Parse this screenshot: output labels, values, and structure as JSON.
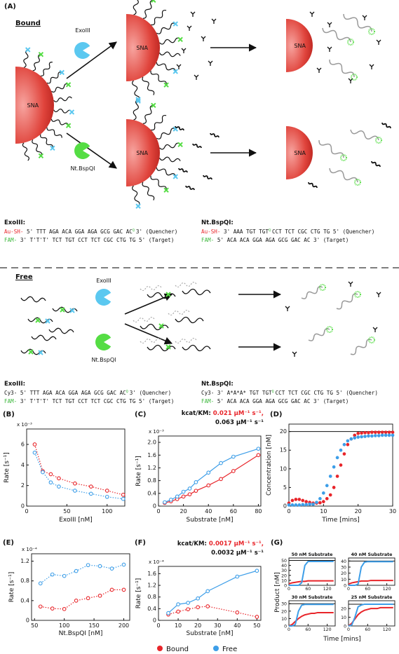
{
  "diagram": {
    "panel_label": "(A)",
    "sna": "SNA",
    "bound": {
      "title": "Bound",
      "enzymes": [
        "ExoIII",
        "Nt.BspQI"
      ]
    },
    "free": {
      "title": "Free",
      "enzymes": [
        "ExoIII",
        "Nt.BspQI"
      ]
    },
    "sequences": {
      "bound": [
        {
          "enzyme": "ExoIII:",
          "lines": [
            {
              "prefix": "Au-SH-",
              "seq": " 5' TTT AGA ACA GGA AGA GCG GAC AC",
              "mark": "Q",
              "tail": "3' (Quencher)"
            },
            {
              "prefix": "FAM-",
              "seq": " 3' T'T'T' TCT TGT CCT TCT CGC CTG TG 5' (Target)"
            }
          ]
        },
        {
          "enzyme": "Nt.BspQI:",
          "lines": [
            {
              "prefix": "Au-SH-",
              "seq": " 3' AAA TGT TGT",
              "mark": "Q",
              "tail": "CCT TCT CGC CTG TG 5' (Quencher)"
            },
            {
              "prefix": "FAM-",
              "seq": " 5' ACA ACA GGA AGA GCG GAC AC 3' (Target)"
            }
          ]
        }
      ],
      "free": [
        {
          "enzyme": "ExoIII:",
          "lines": [
            {
              "prefix": "Cy3-",
              "seq": " 5' TTT AGA ACA GGA AGA GCG GAC AC",
              "mark": "Q",
              "tail": "3' (Quencher)"
            },
            {
              "prefix": "FAM-",
              "seq": " 3' T'T'T' TCT TGT CCT TCT CGC CTG TG 5' (Target)"
            }
          ]
        },
        {
          "enzyme": "Nt.BspQI:",
          "lines": [
            {
              "prefix": "Cy3-",
              "seq": " 3' A*A*A* TGT TGT",
              "mark": "Q",
              "tail": "CCT TCT CGC CTG TG 5' (Quencher)"
            },
            {
              "prefix": "FAM-",
              "seq": " 5' ACA ACA GGA AGA GCG GAC AC 3' (Target)"
            }
          ]
        }
      ]
    }
  },
  "chart_data": [
    {
      "type": "scatter",
      "panel_label": "(B)",
      "xlabel": "ExoIII [nM]",
      "ylabel": "Rate [s⁻¹]",
      "y_multiplier": "x 10⁻³",
      "xlim": [
        0,
        122
      ],
      "xticks": [
        0,
        50,
        100
      ],
      "ylim": [
        0,
        7.5
      ],
      "yticks": [
        0,
        2,
        4,
        6
      ],
      "series": [
        {
          "name": "Bound",
          "color": "#e8252a",
          "line": "dotted",
          "x": [
            10,
            20,
            30,
            40,
            60,
            80,
            100,
            120
          ],
          "values": [
            6.0,
            3.4,
            3.1,
            2.7,
            2.2,
            1.9,
            1.5,
            1.1
          ]
        },
        {
          "name": "Free",
          "color": "#3d9ee8",
          "line": "dotted",
          "x": [
            10,
            20,
            30,
            40,
            60,
            80,
            100,
            120
          ],
          "values": [
            5.2,
            3.3,
            2.3,
            1.9,
            1.5,
            1.2,
            0.9,
            0.7
          ]
        }
      ]
    },
    {
      "type": "scatter",
      "panel_label": "(C)",
      "xlabel": "Substrate [nM]",
      "ylabel": "Rate [s⁻¹]",
      "y_multiplier": "x 10⁻³",
      "annotation": {
        "label": "kcat/KM:",
        "values": [
          "0.021 µM⁻¹ s⁻¹,",
          "0.063 µM⁻¹ s⁻¹"
        ]
      },
      "xlim": [
        0,
        82
      ],
      "xticks": [
        0,
        20,
        40,
        60,
        80
      ],
      "ylim": [
        0,
        2.2
      ],
      "yticks": [
        0,
        0.4,
        0.8,
        1.2,
        1.6,
        {
          "value": 2,
          "label": "2.0"
        }
      ],
      "series": [
        {
          "name": "Bound",
          "color": "#e8252a",
          "line": "solid",
          "x": [
            5,
            10,
            15,
            20,
            25,
            30,
            40,
            50,
            60,
            80
          ],
          "values": [
            0.1,
            0.15,
            0.22,
            0.3,
            0.37,
            0.48,
            0.65,
            0.85,
            1.1,
            1.6
          ]
        },
        {
          "name": "Free",
          "color": "#3d9ee8",
          "line": "solid",
          "x": [
            5,
            10,
            15,
            20,
            25,
            30,
            40,
            50,
            60,
            80
          ],
          "values": [
            0.12,
            0.2,
            0.3,
            0.45,
            0.55,
            0.75,
            1.05,
            1.35,
            1.55,
            1.8
          ]
        }
      ]
    },
    {
      "type": "line",
      "panel_label": "(D)",
      "xlabel": "Time [mins]",
      "ylabel": "Concentration [nM]",
      "reference_line": 20,
      "xlim": [
        0,
        30
      ],
      "xticks": [
        0,
        10,
        20,
        30
      ],
      "ylim": [
        0,
        22
      ],
      "yticks": [
        0,
        5,
        10,
        15,
        20
      ],
      "series": [
        {
          "name": "Bound",
          "color": "#e8252a",
          "line": "none",
          "marker": "filled",
          "x": [
            0,
            1,
            2,
            3,
            4,
            5,
            6,
            7,
            8,
            9,
            10,
            11,
            12,
            13,
            14,
            15,
            16,
            17,
            18,
            19,
            20,
            21,
            22,
            23,
            24,
            25,
            26,
            27,
            28,
            29,
            30
          ],
          "values": [
            0.8,
            1.5,
            1.8,
            1.8,
            1.5,
            1.2,
            1.0,
            0.8,
            0.8,
            0.9,
            1.2,
            2,
            3,
            5,
            8,
            11,
            14,
            16.5,
            18,
            19,
            19.5,
            19.6,
            19.7,
            19.7,
            19.8,
            19.8,
            19.8,
            19.8,
            19.8,
            19.8,
            19.8
          ]
        },
        {
          "name": "Free",
          "color": "#3d9ee8",
          "line": "none",
          "marker": "filled",
          "x": [
            0,
            1,
            2,
            3,
            4,
            5,
            6,
            7,
            8,
            9,
            10,
            11,
            12,
            13,
            14,
            15,
            16,
            17,
            18,
            19,
            20,
            21,
            22,
            23,
            24,
            25,
            26,
            27,
            28,
            29,
            30
          ],
          "values": [
            0.3,
            0.3,
            0.3,
            0.3,
            0.4,
            0.4,
            0.5,
            0.5,
            1,
            2,
            3.5,
            5.5,
            8,
            10.5,
            13,
            15,
            16.5,
            17.5,
            18,
            18.3,
            18.5,
            18.6,
            18.7,
            18.8,
            18.8,
            18.9,
            18.9,
            19,
            19,
            19,
            19
          ]
        }
      ]
    },
    {
      "type": "scatter",
      "panel_label": "(E)",
      "xlabel": "Nt.BspQI [nM]",
      "ylabel": "Rate [s⁻¹]",
      "y_multiplier": "x 10⁻⁴",
      "xlim": [
        45,
        210
      ],
      "xticks": [
        50,
        100,
        150,
        200
      ],
      "ylim": [
        0,
        1.35
      ],
      "yticks": [
        0,
        0.4,
        0.8,
        1.2
      ],
      "series": [
        {
          "name": "Bound",
          "color": "#e8252a",
          "line": "dotted",
          "x": [
            60,
            80,
            100,
            120,
            140,
            160,
            180,
            200
          ],
          "values": [
            0.28,
            0.24,
            0.23,
            0.4,
            0.45,
            0.5,
            0.62,
            0.62
          ]
        },
        {
          "name": "Free",
          "color": "#3d9ee8",
          "line": "dotted",
          "x": [
            60,
            80,
            100,
            120,
            140,
            160,
            180,
            200
          ],
          "values": [
            0.75,
            0.93,
            0.9,
            1.0,
            1.12,
            1.1,
            1.05,
            1.13
          ]
        }
      ]
    },
    {
      "type": "scatter",
      "panel_label": "(F)",
      "xlabel": "Substrate [nM]",
      "ylabel": "Rate [s⁻¹]",
      "y_multiplier": "x 10⁻⁴",
      "annotation": {
        "label": "kcat/KM:",
        "values": [
          "0.0017 µM⁻¹ s⁻¹,",
          "0.0032 µM⁻¹ s⁻¹"
        ]
      },
      "xlim": [
        0,
        52
      ],
      "xticks": [
        0,
        10,
        20,
        30,
        40,
        50
      ],
      "ylim": [
        0,
        1.85
      ],
      "yticks": [
        0,
        0.4,
        0.8,
        1.2,
        1.6
      ],
      "series": [
        {
          "name": "Bound",
          "color": "#e8252a",
          "line": "dotted",
          "x": [
            5,
            10,
            15,
            20,
            25,
            40,
            50
          ],
          "values": [
            0.2,
            0.3,
            0.38,
            0.45,
            0.48,
            0.27,
            0.12
          ]
        },
        {
          "name": "Free",
          "color": "#3d9ee8",
          "line": "solid",
          "x": [
            5,
            10,
            15,
            20,
            25,
            40,
            50
          ],
          "values": [
            0.25,
            0.55,
            0.6,
            0.75,
            1.0,
            1.5,
            1.7
          ]
        }
      ]
    },
    {
      "type": "small-multiples",
      "panel_label": "(G)",
      "xlabel": "Time [mins]",
      "ylabel": "Product [nM]",
      "xlim": [
        0,
        145
      ],
      "xticks": [
        0,
        60,
        120
      ],
      "x": [
        0,
        10,
        20,
        30,
        40,
        50,
        60,
        70,
        80,
        90,
        100,
        110,
        120,
        130,
        140
      ],
      "panels": [
        {
          "title": "50 nM Substrate",
          "reference_line": 50,
          "ylim": [
            0,
            55
          ],
          "yticks": [
            0,
            10,
            20,
            30,
            40,
            50
          ],
          "series": [
            {
              "name": "Bound",
              "color": "#e8252a",
              "values": [
                3,
                5,
                6,
                7,
                8,
                8,
                9,
                9,
                9,
                9,
                9,
                9,
                9,
                9,
                9
              ]
            },
            {
              "name": "Free",
              "color": "#3d9ee8",
              "values": [
                0,
                0,
                0,
                0,
                5,
                40,
                48,
                48,
                48,
                48,
                48,
                48,
                48,
                48,
                48
              ]
            }
          ]
        },
        {
          "title": "40 nM Substrate",
          "reference_line": 40,
          "ylim": [
            0,
            45
          ],
          "yticks": [
            0,
            10,
            20,
            30,
            40
          ],
          "series": [
            {
              "name": "Bound",
              "color": "#e8252a",
              "values": [
                2,
                4,
                5,
                6,
                7,
                7,
                7,
                8,
                8,
                8,
                8,
                8,
                8,
                8,
                8
              ]
            },
            {
              "name": "Free",
              "color": "#3d9ee8",
              "values": [
                0,
                0,
                0,
                2,
                30,
                38,
                39,
                39,
                39,
                39,
                39,
                39,
                39,
                39,
                39
              ]
            }
          ]
        },
        {
          "title": "30 nM Substrate",
          "reference_line": 30,
          "ylim": [
            0,
            34
          ],
          "yticks": [
            0,
            10,
            20,
            30
          ],
          "series": [
            {
              "name": "Bound",
              "color": "#e8252a",
              "values": [
                0,
                2,
                6,
                10,
                13,
                15,
                16,
                17,
                17,
                18,
                18,
                18,
                18,
                18,
                18
              ]
            },
            {
              "name": "Free",
              "color": "#3d9ee8",
              "values": [
                0,
                0,
                2,
                20,
                28,
                29,
                29,
                29,
                29,
                29,
                29,
                29,
                29,
                29,
                29
              ]
            }
          ]
        },
        {
          "title": "25 nM Substrate",
          "reference_line": 25,
          "ylim": [
            0,
            29
          ],
          "yticks": [
            0,
            10,
            20
          ],
          "series": [
            {
              "name": "Bound",
              "color": "#e8252a",
              "values": [
                0,
                3,
                8,
                13,
                16,
                18,
                19,
                20,
                20,
                20,
                21,
                21,
                21,
                21,
                21
              ]
            },
            {
              "name": "Free",
              "color": "#3d9ee8",
              "values": [
                0,
                1,
                10,
                22,
                24,
                25,
                25,
                25,
                25,
                25,
                25,
                25,
                25,
                25,
                25
              ]
            }
          ]
        }
      ]
    }
  ]
}
